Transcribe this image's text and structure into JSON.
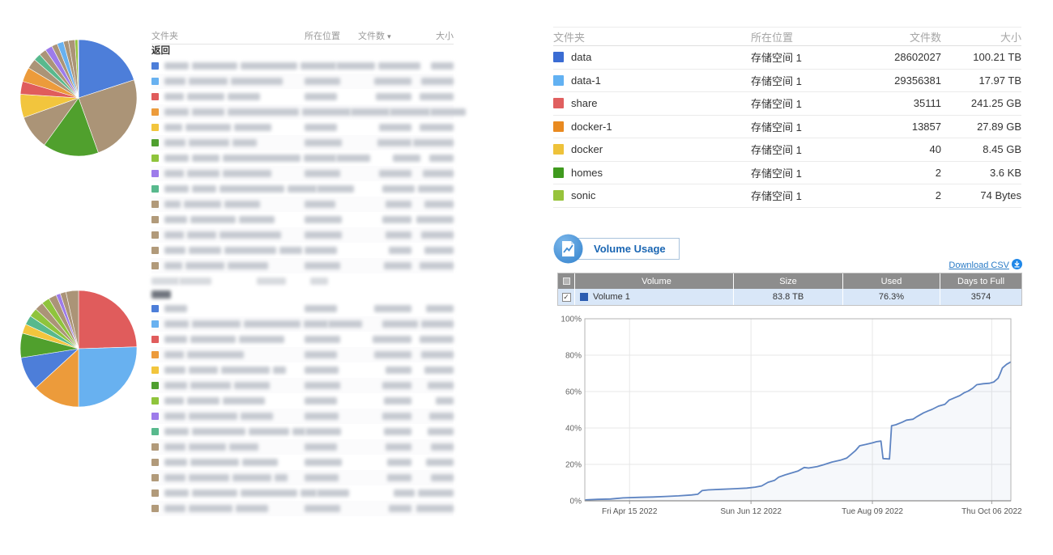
{
  "left_top_table": {
    "headers": [
      "文件夹",
      "所在位置",
      "文件数",
      "大小"
    ],
    "sort_column": "文件数",
    "back_label": "返回",
    "redacted": true,
    "rows": [
      {
        "icon_color": "#4d7ed9",
        "name_segments": [
          30,
          56,
          70,
          44
        ],
        "loc_w": 48,
        "files_w": 52,
        "size_w": 28
      },
      {
        "icon_color": "#68b1f0",
        "name_segments": [
          26,
          48,
          64
        ],
        "loc_w": 44,
        "files_w": 46,
        "size_w": 40
      },
      {
        "icon_color": "#e05c5c",
        "name_segments": [
          24,
          46,
          40
        ],
        "loc_w": 40,
        "files_w": 44,
        "size_w": 42
      },
      {
        "icon_color": "#ec9b3b",
        "name_segments": [
          30,
          40,
          88,
          60
        ],
        "loc_w": 48,
        "files_w": 50,
        "size_w": 44
      },
      {
        "icon_color": "#f2c53d",
        "name_segments": [
          22,
          56,
          46
        ],
        "loc_w": 40,
        "files_w": 40,
        "size_w": 42
      },
      {
        "icon_color": "#4f9f2f",
        "name_segments": [
          26,
          50,
          30
        ],
        "loc_w": 46,
        "files_w": 42,
        "size_w": 50
      },
      {
        "icon_color": "#8fc43c",
        "name_segments": [
          30,
          34,
          96,
          40
        ],
        "loc_w": 42,
        "files_w": 34,
        "size_w": 30
      },
      {
        "icon_color": "#9d7bea",
        "name_segments": [
          24,
          40,
          60
        ],
        "loc_w": 44,
        "files_w": 40,
        "size_w": 38
      },
      {
        "icon_color": "#58b98d",
        "name_segments": [
          30,
          30,
          80,
          36
        ],
        "loc_w": 46,
        "files_w": 40,
        "size_w": 44
      },
      {
        "icon_color": "#b19a7a",
        "name_segments": [
          20,
          46,
          44
        ],
        "loc_w": 38,
        "files_w": 32,
        "size_w": 36
      },
      {
        "icon_color": "#b19a7a",
        "name_segments": [
          28,
          56,
          44
        ],
        "loc_w": 46,
        "files_w": 36,
        "size_w": 46
      },
      {
        "icon_color": "#b19a7a",
        "name_segments": [
          24,
          36,
          76
        ],
        "loc_w": 46,
        "files_w": 32,
        "size_w": 40
      },
      {
        "icon_color": "#b19a7a",
        "name_segments": [
          26,
          40,
          64,
          28
        ],
        "loc_w": 40,
        "files_w": 28,
        "size_w": 36
      },
      {
        "icon_color": "#b19a7a",
        "name_segments": [
          22,
          48,
          50
        ],
        "loc_w": 44,
        "files_w": 34,
        "size_w": 42
      }
    ]
  },
  "left_bottom_table": {
    "redacted": true,
    "header_blob_widths": [
      34,
      40,
      36,
      22
    ],
    "back_blob_width": 24,
    "rows": [
      {
        "icon_color": "#4d7ed9",
        "name_segments": [
          28
        ],
        "loc_w": 40,
        "files_w": 46,
        "size_w": 34
      },
      {
        "icon_color": "#68b1f0",
        "name_segments": [
          30,
          60,
          70,
          30
        ],
        "loc_w": 42,
        "files_w": 44,
        "size_w": 40
      },
      {
        "icon_color": "#e05c5c",
        "name_segments": [
          28,
          56,
          56
        ],
        "loc_w": 44,
        "files_w": 48,
        "size_w": 42
      },
      {
        "icon_color": "#ec9b3b",
        "name_segments": [
          24,
          70
        ],
        "loc_w": 40,
        "files_w": 46,
        "size_w": 40
      },
      {
        "icon_color": "#f2c53d",
        "name_segments": [
          26,
          36,
          60,
          16
        ],
        "loc_w": 42,
        "files_w": 32,
        "size_w": 36
      },
      {
        "icon_color": "#4f9f2f",
        "name_segments": [
          28,
          50,
          44
        ],
        "loc_w": 44,
        "files_w": 36,
        "size_w": 32
      },
      {
        "icon_color": "#8fc43c",
        "name_segments": [
          24,
          40,
          52
        ],
        "loc_w": 40,
        "files_w": 34,
        "size_w": 22
      },
      {
        "icon_color": "#9d7bea",
        "name_segments": [
          26,
          60,
          40
        ],
        "loc_w": 42,
        "files_w": 36,
        "size_w": 30
      },
      {
        "icon_color": "#58b98d",
        "name_segments": [
          30,
          66,
          50,
          16
        ],
        "loc_w": 44,
        "files_w": 34,
        "size_w": 32
      },
      {
        "icon_color": "#b19a7a",
        "name_segments": [
          26,
          46,
          36
        ],
        "loc_w": 40,
        "files_w": 32,
        "size_w": 28
      },
      {
        "icon_color": "#b19a7a",
        "name_segments": [
          28,
          60,
          44
        ],
        "loc_w": 46,
        "files_w": 30,
        "size_w": 34
      },
      {
        "icon_color": "#b19a7a",
        "name_segments": [
          26,
          50,
          48,
          16
        ],
        "loc_w": 42,
        "files_w": 30,
        "size_w": 28
      },
      {
        "icon_color": "#b19a7a",
        "name_segments": [
          30,
          56,
          70,
          20
        ],
        "loc_w": 40,
        "files_w": 26,
        "size_w": 44
      },
      {
        "icon_color": "#b19a7a",
        "name_segments": [
          26,
          54,
          40
        ],
        "loc_w": 44,
        "files_w": 28,
        "size_w": 46
      }
    ]
  },
  "right_table": {
    "headers": [
      "文件夹",
      "所在位置",
      "文件数",
      "大小"
    ],
    "rows": [
      {
        "name": "data",
        "color": "#3a6cd3",
        "location": "存储空间 1",
        "files": "28602027",
        "size": "100.21 TB"
      },
      {
        "name": "data-1",
        "color": "#62b1f2",
        "location": "存储空间 1",
        "files": "29356381",
        "size": "17.97 TB"
      },
      {
        "name": "share",
        "color": "#e05f5f",
        "location": "存储空间 1",
        "files": "35111",
        "size": "241.25 GB"
      },
      {
        "name": "docker-1",
        "color": "#e98a20",
        "location": "存储空间 1",
        "files": "13857",
        "size": "27.89 GB"
      },
      {
        "name": "docker",
        "color": "#eec23a",
        "location": "存储空间 1",
        "files": "40",
        "size": "8.45 GB"
      },
      {
        "name": "homes",
        "color": "#3f9a1e",
        "location": "存储空间 1",
        "files": "2",
        "size": "3.6 KB"
      },
      {
        "name": "sonic",
        "color": "#97c33b",
        "location": "存储空间 1",
        "files": "2",
        "size": "74 Bytes"
      }
    ]
  },
  "volume_usage": {
    "title": "Volume Usage",
    "download_label": "Download CSV",
    "table": {
      "headers": [
        "Volume",
        "Size",
        "Used",
        "Days to Full"
      ],
      "rows": [
        {
          "checked": true,
          "color": "#2b5cb0",
          "name": "Volume 1",
          "size": "83.8 TB",
          "used": "76.3%",
          "days_to_full": "3574"
        }
      ]
    }
  },
  "chart_data": [
    {
      "id": "folder-pie-top",
      "type": "pie",
      "title": "",
      "legend_position": "none",
      "slices": [
        {
          "color": "#4d7ed9",
          "value": 20.0
        },
        {
          "color": "#ab9477",
          "value": 24.5
        },
        {
          "color": "#50a02d",
          "value": 15.5
        },
        {
          "color": "#ab9477",
          "value": 9.5
        },
        {
          "color": "#f2c53d",
          "value": 6.5
        },
        {
          "color": "#e05c5c",
          "value": 3.6
        },
        {
          "color": "#ec9b3b",
          "value": 4.0
        },
        {
          "color": "#ab9477",
          "value": 2.8
        },
        {
          "color": "#58b98d",
          "value": 2.0
        },
        {
          "color": "#ab9477",
          "value": 2.0
        },
        {
          "color": "#9d7bea",
          "value": 2.0
        },
        {
          "color": "#ab9477",
          "value": 1.6
        },
        {
          "color": "#68b1f0",
          "value": 1.8
        },
        {
          "color": "#ab9477",
          "value": 1.4
        },
        {
          "color": "#ab9477",
          "value": 1.8
        },
        {
          "color": "#8fc43c",
          "value": 0.8
        },
        {
          "color": "#ab9477",
          "value": 0.2
        }
      ]
    },
    {
      "id": "folder-pie-bottom",
      "type": "pie",
      "title": "",
      "legend_position": "none",
      "slices": [
        {
          "color": "#e05c5c",
          "value": 24.5
        },
        {
          "color": "#68b1f0",
          "value": 25.5
        },
        {
          "color": "#ec9b3b",
          "value": 13.2
        },
        {
          "color": "#4d7ed9",
          "value": 9.3
        },
        {
          "color": "#50a02d",
          "value": 6.8
        },
        {
          "color": "#f2c53d",
          "value": 2.6
        },
        {
          "color": "#58b98d",
          "value": 2.6
        },
        {
          "color": "#8fc43c",
          "value": 2.4
        },
        {
          "color": "#ab9477",
          "value": 2.4
        },
        {
          "color": "#8fc43c",
          "value": 2.2
        },
        {
          "color": "#ab9477",
          "value": 2.2
        },
        {
          "color": "#9d7bea",
          "value": 1.2
        },
        {
          "color": "#ab9477",
          "value": 1.6
        },
        {
          "color": "#ab9477",
          "value": 3.5
        }
      ]
    },
    {
      "id": "volume-usage-line",
      "type": "line",
      "title": "Volume Usage",
      "line_color": "#5e84c2",
      "grid": true,
      "ylim": [
        0,
        100
      ],
      "y_ticks": [
        "0%",
        "20%",
        "40%",
        "60%",
        "80%",
        "100%"
      ],
      "x_tick_labels": [
        "Fri Apr 15 2022",
        "Sun Jun 12 2022",
        "Tue Aug 09 2022",
        "Thu Oct 06 2022"
      ],
      "x_tick_positions": [
        0.105,
        0.39,
        0.675,
        0.955
      ],
      "series": [
        {
          "name": "Volume 1",
          "points": [
            [
              0.0,
              0.5
            ],
            [
              0.03,
              0.8
            ],
            [
              0.06,
              1.0
            ],
            [
              0.09,
              1.6
            ],
            [
              0.13,
              1.9
            ],
            [
              0.16,
              2.1
            ],
            [
              0.19,
              2.4
            ],
            [
              0.22,
              2.7
            ],
            [
              0.25,
              3.2
            ],
            [
              0.265,
              3.6
            ],
            [
              0.275,
              5.6
            ],
            [
              0.29,
              6.0
            ],
            [
              0.32,
              6.3
            ],
            [
              0.35,
              6.6
            ],
            [
              0.38,
              7.0
            ],
            [
              0.4,
              7.5
            ],
            [
              0.415,
              8.2
            ],
            [
              0.43,
              10.2
            ],
            [
              0.445,
              11.2
            ],
            [
              0.455,
              13.0
            ],
            [
              0.47,
              14.2
            ],
            [
              0.485,
              15.3
            ],
            [
              0.5,
              16.3
            ],
            [
              0.515,
              18.3
            ],
            [
              0.525,
              18.0
            ],
            [
              0.545,
              18.8
            ],
            [
              0.56,
              19.8
            ],
            [
              0.58,
              21.3
            ],
            [
              0.6,
              22.3
            ],
            [
              0.615,
              23.5
            ],
            [
              0.625,
              25.5
            ],
            [
              0.635,
              27.5
            ],
            [
              0.645,
              30.2
            ],
            [
              0.66,
              31.0
            ],
            [
              0.675,
              31.8
            ],
            [
              0.685,
              32.5
            ],
            [
              0.695,
              32.8
            ],
            [
              0.7,
              23.2
            ],
            [
              0.715,
              23.0
            ],
            [
              0.72,
              41.2
            ],
            [
              0.73,
              41.8
            ],
            [
              0.745,
              43.2
            ],
            [
              0.755,
              44.3
            ],
            [
              0.77,
              44.8
            ],
            [
              0.78,
              46.3
            ],
            [
              0.795,
              48.3
            ],
            [
              0.805,
              49.3
            ],
            [
              0.815,
              50.2
            ],
            [
              0.83,
              52.0
            ],
            [
              0.845,
              53.0
            ],
            [
              0.855,
              55.3
            ],
            [
              0.87,
              56.8
            ],
            [
              0.88,
              57.8
            ],
            [
              0.89,
              59.3
            ],
            [
              0.9,
              60.3
            ],
            [
              0.91,
              61.8
            ],
            [
              0.92,
              63.8
            ],
            [
              0.935,
              64.3
            ],
            [
              0.95,
              64.6
            ],
            [
              0.96,
              65.3
            ],
            [
              0.97,
              67.3
            ],
            [
              0.975,
              70.0
            ],
            [
              0.98,
              73.0
            ],
            [
              0.99,
              75.0
            ],
            [
              1.0,
              76.3
            ]
          ]
        }
      ]
    }
  ]
}
